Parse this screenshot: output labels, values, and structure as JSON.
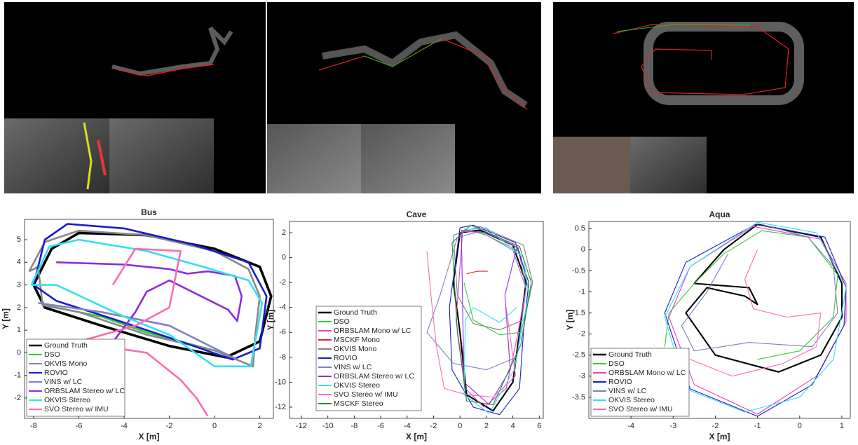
{
  "chart_data": [
    {
      "type": "line",
      "title": "Bus",
      "x_label": "X [m]",
      "y_label": "Y [m]",
      "xlim": [
        -8.4,
        2.6
      ],
      "ylim": [
        -2.9,
        5.9
      ],
      "xticks": [
        -8,
        -6,
        -4,
        -2,
        0,
        2
      ],
      "yticks": [
        -2,
        -1,
        0,
        1,
        2,
        3,
        4,
        5
      ],
      "legend": "lower left",
      "series": [
        {
          "name": "Ground Truth",
          "color": "#000000",
          "x": [
            -8,
            -7.2,
            -6,
            -3,
            0,
            2,
            2.5,
            2,
            0.5,
            -2,
            -5,
            -7.5,
            -8
          ],
          "y": [
            3,
            4.6,
            5.3,
            5.2,
            4.6,
            3.8,
            2.5,
            0.5,
            -0.2,
            0.3,
            1.2,
            2,
            3
          ]
        },
        {
          "name": "DSO",
          "color": "#33cc33",
          "x": [
            -7.5,
            -5,
            -3,
            -1.5,
            0
          ],
          "y": [
            2.1,
            1.6,
            0.9,
            0.5,
            0.1
          ]
        },
        {
          "name": "OKVIS Mono",
          "color": "#888888",
          "x": [
            -8.2,
            -7.5,
            -6,
            -3,
            0,
            1.5,
            2,
            1.8,
            1.7,
            0,
            -3,
            -6,
            -7.6,
            -7.8,
            -8.2
          ],
          "y": [
            3.6,
            4.9,
            5.4,
            5.2,
            4.5,
            3.7,
            2.5,
            0.8,
            -0.6,
            0.1,
            0.8,
            1.8,
            2.1,
            3.8,
            3.6
          ]
        },
        {
          "name": "ROVIO",
          "color": "#1a1acc",
          "x": [
            -8,
            -7.5,
            -6.5,
            -4,
            -1,
            1.5,
            2.3,
            2,
            0.8,
            -1.5,
            -4.5,
            -7,
            -8
          ],
          "y": [
            3,
            5,
            5.7,
            5.5,
            4.8,
            4,
            2.5,
            0.2,
            -0.3,
            0.5,
            1.5,
            2.3,
            3
          ]
        },
        {
          "name": "VINS w/ LC",
          "color": "#7f7fc4",
          "x": [
            -7.8,
            -5,
            -2,
            0,
            1
          ],
          "y": [
            2.2,
            1.8,
            1.2,
            0.2,
            -0.3
          ]
        },
        {
          "name": "ORBSLAM Stereo w/ LC",
          "color": "#8a2be2",
          "x": [
            -7,
            -4,
            -2,
            -1.2,
            -0.3,
            0.9,
            1.2,
            1,
            0.6,
            -2,
            -3,
            -3.5,
            -4.4
          ],
          "y": [
            4,
            3.9,
            3.7,
            3.5,
            3.6,
            3.4,
            2.5,
            1.4,
            1.9,
            3.2,
            2.7,
            1.8,
            0.6
          ]
        },
        {
          "name": "OKVIS Stereo",
          "color": "#33e0f0",
          "x": [
            -8.1,
            -7.3,
            -6,
            -3,
            -0.5,
            1.5,
            2.1,
            1.6,
            0,
            -2,
            -4,
            -7,
            -8.1
          ],
          "y": [
            3,
            4.7,
            5,
            4.5,
            3.8,
            3.2,
            2.2,
            -0.6,
            -0.6,
            0.8,
            1.6,
            3,
            3
          ]
        },
        {
          "name": "SVO Stereo w/ IMU",
          "color": "#ff69b4",
          "x": [
            -4.5,
            -3.5,
            -1.5,
            -2,
            -3.5,
            -6,
            -5,
            -3,
            -1.5,
            -0.8,
            -0.3
          ],
          "y": [
            3,
            4.6,
            4.5,
            2,
            1.2,
            0.5,
            0.3,
            0,
            -1.2,
            -2,
            -2.8
          ]
        }
      ]
    },
    {
      "type": "line",
      "title": "Cave",
      "x_label": "X [m]",
      "y_label": "Y [m]",
      "xlim": [
        -12.9,
        6.3
      ],
      "ylim": [
        -12.9,
        2.9
      ],
      "xticks": [
        -12,
        -10,
        -8,
        -6,
        -4,
        -2,
        0,
        2,
        4,
        6
      ],
      "yticks": [
        -12,
        -10,
        -8,
        -6,
        -4,
        -2,
        0,
        2
      ],
      "legend": "center left",
      "series": [
        {
          "name": "Ground Truth",
          "color": "#000000",
          "x": [
            0,
            1.5,
            4,
            5,
            4.5,
            4,
            2.5,
            0.5,
            0,
            -0.5,
            0
          ],
          "y": [
            2,
            2.2,
            1,
            -2,
            -6,
            -10,
            -12.3,
            -11,
            -6,
            -2,
            2
          ]
        },
        {
          "name": "DSO",
          "color": "#33cc33",
          "x": [
            0.3,
            2,
            4.5,
            5.3,
            4.6,
            3,
            1,
            0.3
          ],
          "y": [
            2.3,
            1.8,
            0.5,
            -3,
            -6,
            -6.2,
            -5,
            -2
          ]
        },
        {
          "name": "ORBSLAM Mono w/ LC",
          "color": "#e040c0",
          "x": [
            0.2,
            2,
            4.4,
            5,
            4.3,
            3.5,
            1.8,
            0.4,
            -0.3,
            0.2
          ],
          "y": [
            2.1,
            2,
            0.8,
            -2.5,
            -6.5,
            -10.5,
            -12,
            -10.5,
            -5,
            2.1
          ]
        },
        {
          "name": "MSCKF Mono",
          "color": "#dd2222",
          "x": [
            0.5,
            1.3,
            2.1
          ],
          "y": [
            -1.3,
            -1.1,
            -1.1
          ]
        },
        {
          "name": "OKVIS Mono",
          "color": "#808080",
          "x": [
            -0.5,
            1.5,
            4.8,
            5.5,
            4.8,
            3,
            1,
            -0.2,
            -0.5
          ],
          "y": [
            1.8,
            2.5,
            1,
            -2,
            -5,
            -5.8,
            -5.3,
            -3,
            1.8
          ]
        },
        {
          "name": "ROVIO",
          "color": "#1a1acc",
          "x": [
            0,
            1,
            4.2,
            5.2,
            4.8,
            4.5,
            3,
            1,
            -0.6,
            -0.8,
            0
          ],
          "y": [
            2.4,
            2.6,
            1.2,
            -2,
            -6,
            -10.5,
            -12.6,
            -12,
            -9,
            -4,
            2.4
          ]
        },
        {
          "name": "VINS w/ LC",
          "color": "#7f7fc4",
          "x": [
            -0.2,
            1.5,
            4,
            5,
            4.3,
            2,
            -0.5,
            -2.5,
            -1.5,
            -0.2
          ],
          "y": [
            1.6,
            2.1,
            0.6,
            -2.5,
            -8,
            -9,
            -8.5,
            -6,
            -3,
            1.6
          ]
        },
        {
          "name": "ORBSLAM Stereo w/ LC",
          "color": "#8a2be2",
          "x": [
            0.1,
            2,
            4.3,
            3.4,
            3.8,
            2.2,
            0.3,
            0.1
          ],
          "y": [
            2.2,
            2,
            0.8,
            -3,
            -9,
            -11.8,
            -10,
            2.2
          ]
        },
        {
          "name": "OKVIS Stereo",
          "color": "#33e0f0",
          "x": [
            0.4,
            2,
            4.8,
            5.2,
            4.1,
            2.2,
            0.3,
            0.4,
            1,
            3,
            4.3
          ],
          "y": [
            2.2,
            2.4,
            0,
            -3,
            -9,
            -12.5,
            -11,
            -5,
            -4,
            -5.2,
            -4
          ]
        },
        {
          "name": "SVO Stereo w/ IMU",
          "color": "#ff69b4",
          "x": [
            -2.5,
            -2.2,
            -1.8,
            -1.2,
            0.5,
            2.5,
            4.2,
            3.5
          ],
          "y": [
            0.5,
            -3,
            -7,
            -10.5,
            -11,
            -11.2,
            -9.5,
            -4
          ]
        },
        {
          "name": "MSCKF Stereo",
          "color": "#2e8b2e",
          "x": [
            -0.6,
            0.8,
            4.5,
            5.4,
            4.6,
            2.5,
            0.5,
            -0.2,
            -0.6
          ],
          "y": [
            1.2,
            2.6,
            0.9,
            -2,
            -7,
            -11.8,
            -11.5,
            -6,
            1.2
          ]
        }
      ]
    },
    {
      "type": "line",
      "title": "Aqua",
      "x_label": "X [m]",
      "y_label": "Y [m]",
      "xlim": [
        -5,
        1.2
      ],
      "ylim": [
        -4,
        0.67
      ],
      "xticks": [
        -4,
        -3,
        -2,
        -1,
        0,
        1
      ],
      "yticks": [
        -3.5,
        -3,
        -2.5,
        -2,
        -1.5,
        -1,
        -0.5,
        0,
        0.5
      ],
      "legend": "lower left",
      "series": [
        {
          "name": "Ground Truth",
          "color": "#000000",
          "x": [
            -1,
            0.5,
            1,
            1,
            0.5,
            -0.5,
            -2,
            -2.7,
            -2.2,
            -1.3,
            -1,
            -1.2,
            -2.5,
            -1.8,
            -1
          ],
          "y": [
            0.6,
            0.3,
            -0.8,
            -1.6,
            -2.5,
            -2.9,
            -2.5,
            -1.5,
            -0.9,
            -1.1,
            -1.3,
            -0.9,
            -0.8,
            0,
            0.6
          ]
        },
        {
          "name": "DSO",
          "color": "#33cc33",
          "x": [
            -3.2,
            -3.1,
            -2.5,
            -1.8,
            -0.9,
            0.2,
            0.9,
            0.8,
            0,
            -1
          ],
          "y": [
            -2.3,
            -1.5,
            -0.8,
            -0.1,
            0.45,
            0.3,
            -0.6,
            -1.6,
            -2.4,
            -2.6
          ]
        },
        {
          "name": "ORBSLAM Mono w/ LC",
          "color": "#e040c0",
          "x": [
            -1.1,
            0.5,
            1.1,
            1.1,
            0.4,
            -1,
            -2.5,
            -3.1,
            -2.6,
            -1.1
          ],
          "y": [
            0.55,
            0.25,
            -0.8,
            -1.7,
            -3,
            -3.9,
            -3.2,
            -1.6,
            -0.4,
            0.55
          ]
        },
        {
          "name": "ROVIO",
          "color": "#1a1acc",
          "x": [
            -1.05,
            0.6,
            1.1,
            1.05,
            0.3,
            -1,
            -2.6,
            -3.2,
            -2.7,
            -1.05
          ],
          "y": [
            0.6,
            0.3,
            -0.9,
            -1.8,
            -3.2,
            -3.95,
            -3.3,
            -1.5,
            -0.3,
            0.6
          ]
        },
        {
          "name": "VINS w/ LC",
          "color": "#7f7fc4",
          "x": [
            -1.7,
            -2.2,
            -2.8,
            -2.5,
            -1.2,
            0.3,
            0.9,
            0.8,
            0.2,
            -0.9
          ],
          "y": [
            -0.1,
            -1,
            -1.8,
            -2.4,
            -2.2,
            -2.3,
            -1.5,
            -0.4,
            0.3,
            0.6
          ]
        },
        {
          "name": "OKVIS Stereo",
          "color": "#33e0f0",
          "x": [
            -1,
            0.4,
            1.1,
            0.8,
            0,
            -1.3,
            -2.7,
            -3.2,
            -2.6,
            -1
          ],
          "y": [
            0.65,
            0.4,
            -0.9,
            -2.6,
            -3.5,
            -3.85,
            -3.3,
            -1.6,
            -0.4,
            0.65
          ]
        },
        {
          "name": "SVO Stereo w/ IMU",
          "color": "#ff69b4",
          "x": [
            -1,
            -1.3,
            -1.1,
            -0.3,
            0.5,
            0.4,
            -0.4,
            -1.6,
            -2.6
          ],
          "y": [
            0,
            -0.7,
            -1.4,
            -1.6,
            -1.5,
            -2.3,
            -2.7,
            -3,
            -2.6
          ]
        }
      ]
    }
  ]
}
